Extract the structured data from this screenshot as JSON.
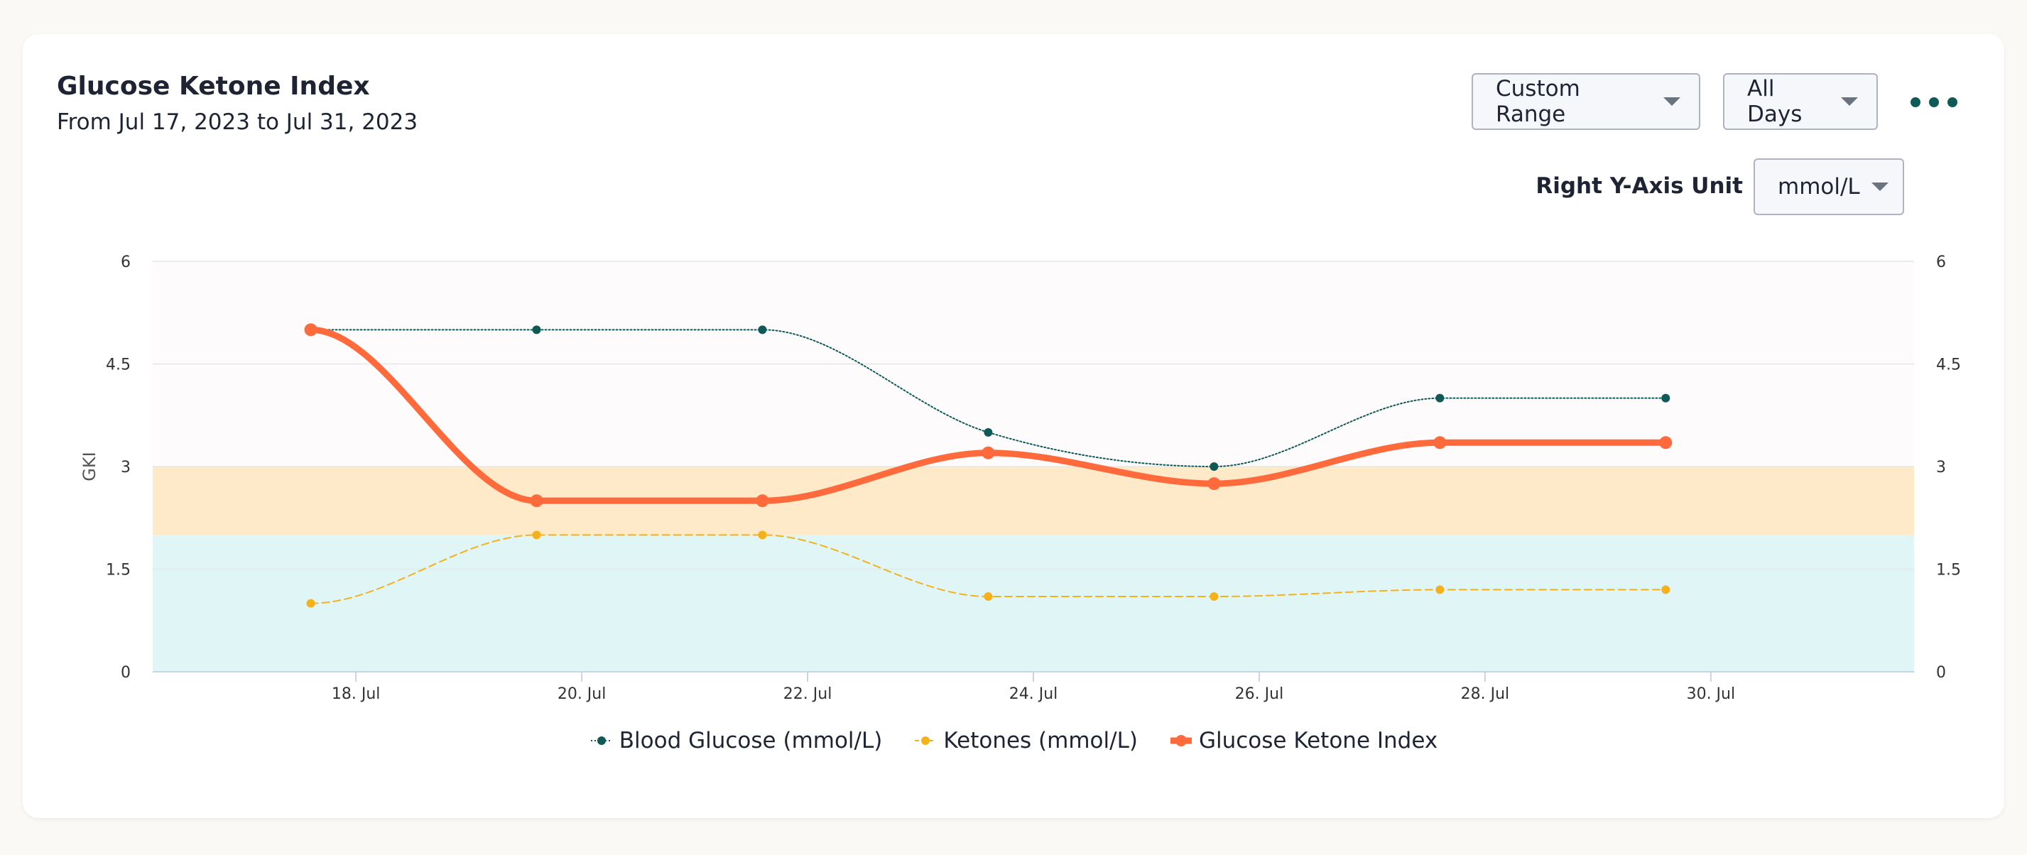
{
  "header": {
    "title": "Glucose Ketone Index",
    "subtitle": "From Jul 17, 2023 to Jul 31, 2023"
  },
  "controls": {
    "range_label": "Custom Range",
    "days_label": "All Days",
    "more_icon": "more-horizontal-icon",
    "unit_label": "Right Y-Axis Unit",
    "unit_value": "mmol/L"
  },
  "colors": {
    "glucose": "#0f5a57",
    "ketones": "#f5b11c",
    "gki": "#ff6a3d",
    "band_low": "#e0f6f6",
    "band_mid": "#fee9c8",
    "band_high": "#fdfbfb"
  },
  "chart_data": {
    "type": "line",
    "ylabel": "GKI",
    "y_ticks": [
      "0",
      "1.5",
      "3",
      "4.5",
      "6"
    ],
    "ylim": [
      0,
      6
    ],
    "right_y_ticks": [
      "0",
      "1.5",
      "3",
      "4.5",
      "6"
    ],
    "right_ylim": [
      0,
      6
    ],
    "x_ticks": [
      "18. Jul",
      "20. Jul",
      "22. Jul",
      "24. Jul",
      "26. Jul",
      "28. Jul",
      "30. Jul"
    ],
    "xlim": [
      16.2,
      31.8
    ],
    "x_tick_values": [
      18,
      20,
      22,
      24,
      26,
      28,
      30
    ],
    "bands": [
      {
        "from": 0,
        "to": 2,
        "color": "#e0f6f6"
      },
      {
        "from": 2,
        "to": 3,
        "color": "#fee9c8"
      },
      {
        "from": 3,
        "to": 6,
        "color": "#fdfbfb"
      }
    ],
    "x": [
      17.6,
      19.6,
      21.6,
      23.6,
      25.6,
      27.6,
      29.6
    ],
    "series": [
      {
        "name": "Blood Glucose (mmol/L)",
        "color": "#0f5a57",
        "style": "dotted",
        "values": [
          5,
          5,
          5,
          3.5,
          3,
          4,
          4
        ]
      },
      {
        "name": "Ketones (mmol/L)",
        "color": "#f5b11c",
        "style": "dashed",
        "values": [
          1,
          2,
          2,
          1.1,
          1.1,
          1.2,
          1.2
        ]
      },
      {
        "name": "Glucose Ketone Index",
        "color": "#ff6a3d",
        "style": "bold",
        "values": [
          5,
          2.5,
          2.5,
          3.2,
          2.75,
          3.35,
          3.35
        ]
      }
    ],
    "legend_position": "bottom-center",
    "grid": true
  }
}
